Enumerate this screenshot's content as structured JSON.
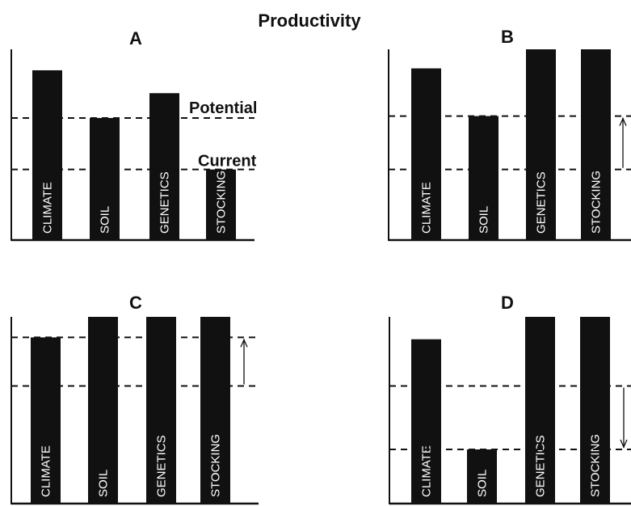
{
  "title": "Productivity",
  "line_labels": {
    "potential": "Potential",
    "current": "Current"
  },
  "panels": [
    {
      "label": "A",
      "bars": [
        {
          "name": "CLIMATE",
          "value": 0.89
        },
        {
          "name": "SOIL",
          "value": 0.64
        },
        {
          "name": "GENETICS",
          "value": 0.77
        },
        {
          "name": "STOCKING",
          "value": 0.37
        }
      ],
      "potential": 0.64,
      "current": 0.37,
      "arrow": "none",
      "show_line_labels": true
    },
    {
      "label": "B",
      "bars": [
        {
          "name": "CLIMATE",
          "value": 0.9
        },
        {
          "name": "SOIL",
          "value": 0.65
        },
        {
          "name": "GENETICS",
          "value": 1.0
        },
        {
          "name": "STOCKING",
          "value": 1.0
        }
      ],
      "potential": 0.65,
      "current": 0.37,
      "arrow": "up"
    },
    {
      "label": "C",
      "bars": [
        {
          "name": "CLIMATE",
          "value": 0.89
        },
        {
          "name": "SOIL",
          "value": 1.0
        },
        {
          "name": "GENETICS",
          "value": 1.0
        },
        {
          "name": "STOCKING",
          "value": 1.0
        }
      ],
      "potential": 0.89,
      "current": 0.63,
      "arrow": "up"
    },
    {
      "label": "D",
      "bars": [
        {
          "name": "CLIMATE",
          "value": 0.88
        },
        {
          "name": "SOIL",
          "value": 0.29
        },
        {
          "name": "GENETICS",
          "value": 1.0
        },
        {
          "name": "STOCKING",
          "value": 1.0
        }
      ],
      "potential": 0.63,
      "current": 0.29,
      "arrow": "down"
    }
  ]
}
